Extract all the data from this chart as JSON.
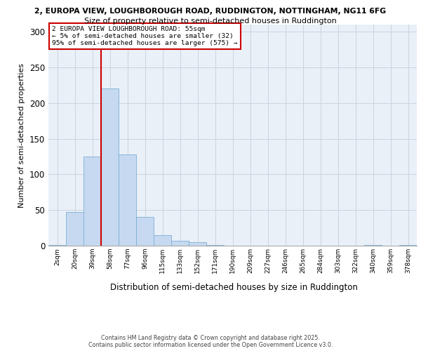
{
  "title_line1": "2, EUROPA VIEW, LOUGHBOROUGH ROAD, RUDDINGTON, NOTTINGHAM, NG11 6FG",
  "title_line2": "Size of property relative to semi-detached houses in Ruddington",
  "xlabel": "Distribution of semi-detached houses by size in Ruddington",
  "ylabel": "Number of semi-detached properties",
  "bar_labels": [
    "2sqm",
    "20sqm",
    "39sqm",
    "58sqm",
    "77sqm",
    "96sqm",
    "115sqm",
    "133sqm",
    "152sqm",
    "171sqm",
    "190sqm",
    "209sqm",
    "227sqm",
    "246sqm",
    "265sqm",
    "284sqm",
    "303sqm",
    "322sqm",
    "340sqm",
    "359sqm",
    "378sqm"
  ],
  "bar_values": [
    1,
    47,
    125,
    220,
    128,
    40,
    15,
    7,
    5,
    1,
    0,
    0,
    0,
    0,
    0,
    0,
    0,
    0,
    1,
    0,
    1
  ],
  "bar_color": "#c6d9f0",
  "bar_edgecolor": "#7bafd4",
  "vline_x": 2.5,
  "vline_color": "#cc0000",
  "annotation_text": "2 EUROPA VIEW LOUGHBOROUGH ROAD: 55sqm\n← 5% of semi-detached houses are smaller (32)\n95% of semi-detached houses are larger (575) →",
  "annotation_box_facecolor": "#ffffff",
  "annotation_box_edgecolor": "#cc0000",
  "ylim": [
    0,
    310
  ],
  "yticks": [
    0,
    50,
    100,
    150,
    200,
    250,
    300
  ],
  "grid_color": "#c8d4e0",
  "plot_bg_color": "#eaf0f8",
  "footer_text": "Contains HM Land Registry data © Crown copyright and database right 2025.\nContains public sector information licensed under the Open Government Licence v3.0."
}
